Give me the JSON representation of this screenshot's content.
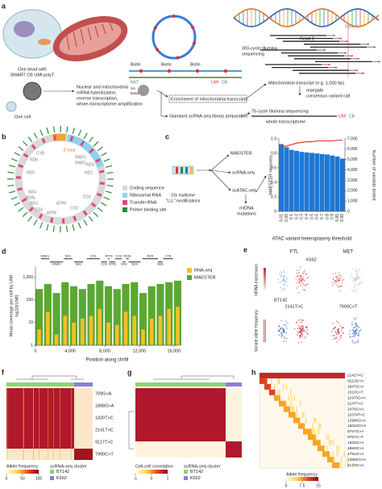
{
  "a": {
    "letter": "a",
    "read2": "Read 2",
    "read1": "Read 1",
    "sequencing300": [
      "300-cycle Illumina",
      "sequencing"
    ],
    "transcript": "Mitochondrial transcript (e.g. 1,000 bp)",
    "maegatk": [
      "maegatk",
      "consensus variant call"
    ],
    "biotin": "Biotin",
    "nxt": "NXT",
    "sa_bead": [
      "SA",
      "bead"
    ],
    "umi": "UMI",
    "cb": "CB",
    "bead": [
      "One bead with",
      "SMART CB UMI polyT"
    ],
    "cell": "One cell",
    "steps": [
      "Nuclear and mitochondrial",
      "mRNA hybridization,",
      "reverse transcription,",
      "whole-transcriptome amplification"
    ],
    "enrichment": "Enrichment of mitochondrial transcripts",
    "standard": "Standard scRNA-seq library preparation",
    "sequencing75": "75-cycle Illumina sequencing",
    "whole": "whole transcriptome"
  },
  "b": {
    "letter": "b",
    "genes": [
      "D-loop",
      "CYB",
      "ND6",
      "ND5",
      "ND4",
      "ND4L",
      "ND3",
      "CO3",
      "ATP6",
      "ATP8",
      "CO2",
      "CO1",
      "ND2",
      "ND1",
      "RNR1",
      "RNR2"
    ],
    "legend": [
      "Coding sequence",
      "Ribosomal RNA",
      "Transfer RNA",
      "Primer binding site"
    ],
    "legend_colors": [
      "#d9d9d9",
      "#8fd3ea",
      "#e0458a",
      "#2e8b3a"
    ]
  },
  "c": {
    "letter": "c",
    "maester": "MAESTER",
    "scrna": "scRNA-seq",
    "scatac": "scATAC-seq",
    "mtdna": [
      "mtDNA",
      "mutations"
    ],
    "multiome": [
      "10x multiome",
      "\"LLL\" modifications"
    ],
    "chart": {
      "type": "bar",
      "categories": [
        "0.01",
        "0.05",
        "0.1",
        "0.2",
        "0.3",
        "0.4",
        "0.5",
        "0.6",
        "0.7",
        "0.8",
        "0.9",
        "0.95",
        "0.99"
      ],
      "series": [
        {
          "type": "bar",
          "axis": "y2",
          "color": "#1f77d4",
          "values": [
            6500,
            6200,
            5950,
            5850,
            5750,
            5700,
            5650,
            5600,
            5550,
            5500,
            5400,
            5300,
            5100
          ]
        },
        {
          "type": "line",
          "axis": "y",
          "color": "#e8382b",
          "values": [
            0.89,
            0.9,
            0.92,
            0.94,
            0.95,
            0.96,
            0.96,
            0.97,
            0.97,
            0.97,
            0.97,
            0.98,
            0.98
          ]
        }
      ],
      "ylabel": "MAESTER recovery",
      "y2label": "Number of variants tested",
      "xlabel": "ATAC variant heteroplasmy threshold",
      "ylim": [
        0,
        1
      ],
      "yticks": [
        0,
        0.2,
        0.4,
        0.6,
        0.8,
        {
          "value": 1,
          "label": "1.0"
        }
      ],
      "y2lim": [
        0,
        7000
      ],
      "y2ticks": [
        0,
        {
          "value": 1000,
          "label": "1,000"
        },
        {
          "value": 2000,
          "label": "2,000"
        },
        {
          "value": 3000,
          "label": "3,000"
        },
        {
          "value": 4000,
          "label": "4,000"
        },
        {
          "value": 5000,
          "label": "5,000"
        },
        {
          "value": 6000,
          "label": "6,000"
        },
        {
          "value": 7000,
          "label": "7,000"
        }
      ]
    }
  },
  "d": {
    "letter": "d",
    "chart": {
      "type": "bar",
      "log_y": true,
      "x": [
        0,
        1000,
        2000,
        3000,
        4000,
        5000,
        6000,
        7000,
        8000,
        9000,
        10000,
        11000,
        12000,
        13000,
        14000,
        15000,
        16000
      ],
      "series": [
        {
          "name": "MAESTER",
          "color": "#5aa832",
          "values": [
            300,
            500,
            200,
            600,
            400,
            300,
            500,
            700,
            400,
            300,
            500,
            600,
            200,
            400,
            500,
            600,
            700
          ]
        },
        {
          "name": "RNA-seq",
          "color": "#f2c029",
          "values": [
            5,
            30,
            3,
            20,
            10,
            15,
            20,
            40,
            10,
            8,
            30,
            20,
            5,
            15,
            20,
            40,
            50
          ]
        }
      ],
      "xlim": [
        0,
        16569
      ],
      "xticks": [
        0,
        {
          "value": 4000,
          "label": "4,000"
        },
        {
          "value": 8000,
          "label": "8,000"
        },
        {
          "value": 12000,
          "label": "12,000"
        },
        {
          "value": 16000,
          "label": "16,000"
        }
      ],
      "ylim": [
        1,
        3000
      ],
      "yticks": [
        1,
        10,
        100,
        {
          "value": 1000,
          "label": "1,000"
        }
      ],
      "ylabel": [
        "Mean coverage per cell by UMI",
        "log10(UMI)"
      ],
      "xlabel": "Position along chrM",
      "genes": [
        {
          "name": "RNR1",
          "start": 650,
          "end": 1600
        },
        {
          "name": "RNR2",
          "start": 1670,
          "end": 3200
        },
        {
          "name": "ND1",
          "start": 3300,
          "end": 4260
        },
        {
          "name": "ND2",
          "start": 4470,
          "end": 5510
        },
        {
          "name": "CO1",
          "start": 5900,
          "end": 7440
        },
        {
          "name": "CO2",
          "start": 7590,
          "end": 8270
        },
        {
          "name": "ATP8",
          "start": 8370,
          "end": 8570
        },
        {
          "name": "ATP6",
          "start": 8530,
          "end": 9200
        },
        {
          "name": "CO3",
          "start": 9210,
          "end": 9990
        },
        {
          "name": "ND3",
          "start": 10060,
          "end": 10400
        },
        {
          "name": "ND4L",
          "start": 10470,
          "end": 10770
        },
        {
          "name": "ND4",
          "start": 10760,
          "end": 12140
        },
        {
          "name": "ND5",
          "start": 12340,
          "end": 14150
        },
        {
          "name": "ND6",
          "start": 14150,
          "end": 14670
        },
        {
          "name": "CYB",
          "start": 14750,
          "end": 15890
        }
      ]
    }
  },
  "e": {
    "letter": "e",
    "genes": [
      "FTL",
      "MET"
    ],
    "k562": "K562",
    "bt142": "BT142",
    "variants": [
      "2141T>C",
      "7990C>T"
    ],
    "row_labels": [
      "mRNA expression",
      "Variant allele frequency"
    ]
  },
  "f": {
    "letter": "f",
    "rows": [
      "709G>A",
      "1888G>A",
      "1420T>C",
      "2141T>C",
      "9117T>C",
      "7990C>T"
    ],
    "colorbar_label": "Allele frequency",
    "colorbar_ticks": [
      0,
      50,
      100
    ],
    "legend_title": "scRNA-seq cluster",
    "clusters": [
      "BT142",
      "K562"
    ],
    "cluster_colors": [
      "#8ed36a",
      "#8c7fd8"
    ]
  },
  "g": {
    "letter": "g",
    "colorbar_label": "Cell-cell correlation",
    "colorbar_ticks": [
      -1,
      0,
      1
    ],
    "legend_title": "scRNA-seq cluster",
    "clusters": [
      "BT142",
      "K562"
    ]
  },
  "h": {
    "letter": "h",
    "rows": [
      "2141T>C",
      "9213G>A",
      "2847G>A",
      "1310C>T",
      "11970G>A",
      "2147T>C",
      "2476G>A",
      "11079T>C",
      "12980G>A",
      "15024G>A",
      "8767G>A",
      "9757C>T",
      "1832G>A",
      "2850G>A",
      "4791G>A",
      "13982G>A",
      "2170G>A"
    ],
    "colorbar_label": "Allele frequency",
    "colorbar_ticks": [
      0,
      7.5,
      15
    ]
  }
}
